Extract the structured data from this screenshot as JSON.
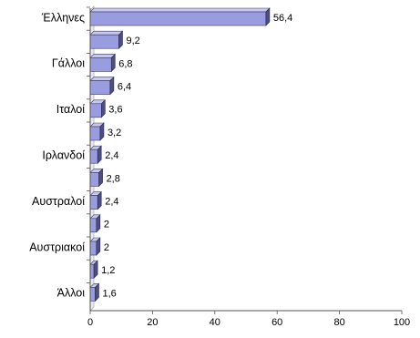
{
  "chart_data": {
    "type": "bar",
    "orientation": "horizontal",
    "style": "3d",
    "bar_color": "#9a9ce0",
    "bar_side_color": "#4b4e7e",
    "bar_top_color": "#c6c8f2",
    "title": "",
    "xlabel": "",
    "ylabel": "",
    "xlim": [
      0,
      100
    ],
    "x_ticks": [
      0,
      20,
      40,
      60,
      80,
      100
    ],
    "grid": false,
    "categories": [
      "Έλληνες",
      "",
      "Γάλλοι",
      "",
      "Ιταλοί",
      "",
      "Ιρλανδοί",
      "",
      "Αυστραλοί",
      "",
      "Αυστριακοί",
      "",
      "Άλλοι"
    ],
    "values": [
      56.4,
      9.2,
      6.8,
      6.4,
      3.6,
      3.2,
      2.4,
      2.8,
      2.4,
      2,
      2,
      1.2,
      1.6
    ],
    "value_labels": [
      "56,4",
      "9,2",
      "6,8",
      "6,4",
      "3,6",
      "3,2",
      "2,4",
      "2,8",
      "2,4",
      "2",
      "2",
      "1,2",
      "1,6"
    ]
  }
}
